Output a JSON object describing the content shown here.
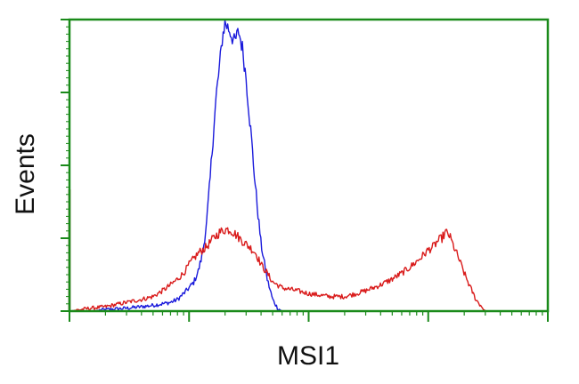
{
  "chart_data": {
    "type": "line",
    "title": "",
    "xlabel": "MSI1",
    "ylabel": "Events",
    "x_scale": "log",
    "xlim": [
      1,
      10000
    ],
    "ylim": [
      0,
      100
    ],
    "frame_color": "#1a8a1a",
    "grid": false,
    "legend": "none",
    "series": [
      {
        "color": "#1a1adb",
        "x": [
          1,
          1.5,
          2,
          3,
          4,
          5,
          6,
          7,
          8,
          9,
          10,
          11,
          12,
          13,
          14,
          15,
          16,
          17,
          18,
          19,
          20,
          22,
          24,
          26,
          28,
          30,
          32,
          34,
          36,
          38,
          40,
          45,
          50,
          55,
          60,
          65,
          70,
          80,
          90,
          100,
          1000,
          10000
        ],
        "y": [
          0,
          0,
          0.5,
          1,
          1.5,
          2,
          2.5,
          3,
          4,
          6,
          8,
          10,
          14,
          20,
          30,
          45,
          62,
          75,
          84,
          94,
          99,
          96,
          92,
          96,
          90,
          80,
          67,
          54,
          42,
          32,
          23,
          11,
          4,
          1,
          0,
          0,
          0,
          0,
          0,
          0,
          0,
          0
        ]
      },
      {
        "color": "#d91a1a",
        "x": [
          1,
          1.5,
          2,
          3,
          4,
          5,
          6,
          7,
          8,
          9,
          10,
          12,
          14,
          16,
          18,
          20,
          22,
          25,
          28,
          32,
          36,
          40,
          45,
          50,
          60,
          80,
          100,
          150,
          200,
          250,
          300,
          400,
          500,
          600,
          700,
          800,
          900,
          1000,
          1100,
          1200,
          1300,
          1400,
          1500,
          1600,
          1800,
          2000,
          2200,
          2500,
          3000
        ],
        "y": [
          0,
          1,
          1.5,
          3,
          4,
          5,
          7,
          9,
          11,
          13,
          16,
          20,
          22,
          25,
          27,
          28,
          28,
          26,
          24,
          22,
          20,
          16,
          13,
          10,
          8,
          7,
          6,
          5,
          5,
          6,
          7,
          9,
          11,
          13,
          15,
          17,
          19,
          21,
          22,
          24,
          25,
          27,
          26,
          23,
          18,
          13,
          9,
          4,
          0
        ]
      }
    ]
  }
}
